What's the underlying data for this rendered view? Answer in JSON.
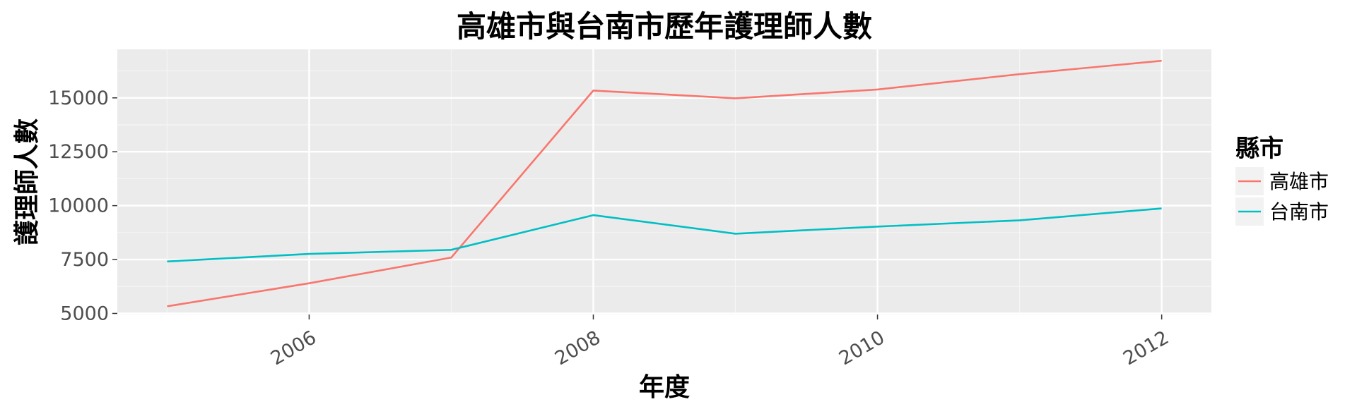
{
  "chart_data": {
    "type": "line",
    "title": "高雄市與台南市歷年護理師人數",
    "xlabel": "年度",
    "ylabel": "護理師人數",
    "x": [
      2005,
      2006,
      2007,
      2008,
      2009,
      2010,
      2011,
      2012
    ],
    "x_ticks": [
      2006,
      2008,
      2010,
      2012
    ],
    "y_ticks": [
      5000,
      7500,
      10000,
      12500,
      15000
    ],
    "xlim": [
      2004.65,
      2012.35
    ],
    "ylim": [
      4950,
      17250
    ],
    "grid": true,
    "legend": {
      "title": "縣市",
      "placement": "right"
    },
    "series": [
      {
        "name": "高雄市",
        "color": "#F8766D",
        "values": [
          5330,
          6400,
          7590,
          15340,
          14980,
          15390,
          16100,
          16720
        ]
      },
      {
        "name": "台南市",
        "color": "#00BFC4",
        "values": [
          7410,
          7760,
          7950,
          9560,
          8700,
          9030,
          9320,
          9870
        ]
      }
    ]
  }
}
